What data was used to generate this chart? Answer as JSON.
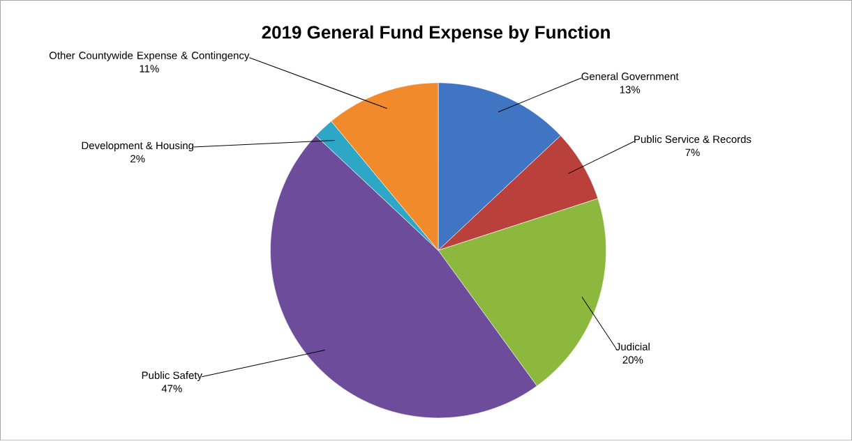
{
  "chart_data": {
    "type": "pie",
    "title": "2019 General Fund Expense by Function",
    "categories": [
      "General Government",
      "Public Service & Records",
      "Judicial",
      "Public Safety",
      "Development & Housing",
      "Other Countywide Expense & Contingency"
    ],
    "values": [
      13,
      7,
      20,
      47,
      2,
      11
    ],
    "colors": [
      "#3f75c2",
      "#b9403b",
      "#8bb83d",
      "#6d4c9b",
      "#2ea6c6",
      "#f08a2b"
    ],
    "value_labels": [
      "13%",
      "7%",
      "20%",
      "47%",
      "2%",
      "11%"
    ]
  }
}
